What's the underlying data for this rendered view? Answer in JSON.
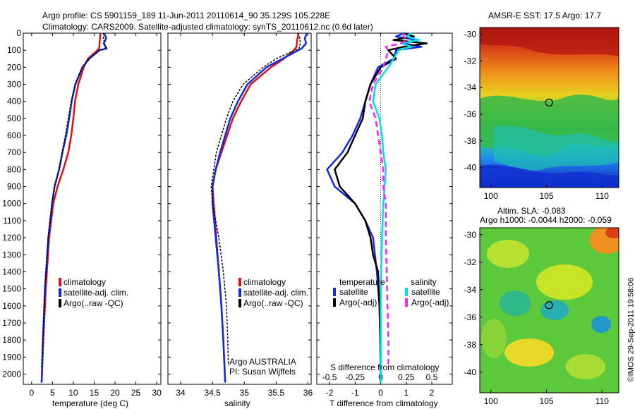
{
  "header": {
    "line1": "Argo profile: CS 5901159_189 11-Jun-2011 20110614_90 35.129S 105.228E",
    "line2": "Climatology: CARS2009. Satellite-adjusted climatology: synTS_20110612.nc (0.6d later)"
  },
  "colors": {
    "clim": "#e01010",
    "sat": "#1028e0",
    "argo": "#000000",
    "satS": "#00e0e8",
    "argoS": "#ff20ff"
  },
  "chart_data": [
    {
      "type": "line",
      "xlabel": "temperature (deg C)",
      "xlim": [
        -2,
        31
      ],
      "xticks": [
        0,
        5,
        10,
        15,
        20,
        25,
        30
      ],
      "ylim": [
        0,
        2060
      ],
      "yticks": [
        0,
        100,
        200,
        300,
        400,
        500,
        600,
        700,
        800,
        900,
        1000,
        1100,
        1200,
        1300,
        1400,
        1500,
        1600,
        1700,
        1800,
        1900,
        2000
      ],
      "legend": [
        "climatology",
        "satellite-adj. clim.",
        "Argo(..raw -QC)"
      ],
      "series": [
        {
          "name": "climatology",
          "color": "#e01010",
          "width": 2.5,
          "y": [
            0,
            30,
            60,
            90,
            100,
            150,
            200,
            300,
            400,
            500,
            600,
            700,
            800,
            900,
            1000,
            1200,
            1500,
            1800,
            2050
          ],
          "x": [
            16.5,
            16.4,
            16.3,
            16.2,
            15.8,
            13.5,
            12.5,
            11.2,
            10.4,
            10.0,
            9.5,
            8.8,
            7.6,
            6.2,
            5.2,
            4.2,
            3.4,
            2.8,
            2.4
          ]
        },
        {
          "name": "satellite-adj. clim.",
          "color": "#1028e0",
          "width": 2.5,
          "y": [
            0,
            30,
            60,
            90,
            100,
            150,
            200,
            300,
            400,
            500,
            600,
            700,
            800,
            900,
            1000,
            1200,
            1500,
            1800,
            2050
          ],
          "x": [
            17.4,
            17.9,
            17.3,
            18.0,
            16.3,
            13.8,
            12.2,
            10.5,
            9.6,
            9.0,
            8.3,
            7.4,
            6.6,
            5.5,
            4.9,
            4.0,
            3.2,
            2.7,
            2.4
          ]
        },
        {
          "name": "Argo(..raw -QC)",
          "color": "#000000",
          "width": 1.5,
          "dash": "3 2",
          "y": [
            0,
            30,
            60,
            90,
            100,
            150,
            200,
            300,
            400,
            500,
            600,
            700,
            800,
            900,
            1000,
            1200,
            1500,
            1800,
            1960
          ],
          "x": [
            17.3,
            17.2,
            17.5,
            17.7,
            16.2,
            13.8,
            12.1,
            10.4,
            9.5,
            8.8,
            8.1,
            7.3,
            6.5,
            5.5,
            4.9,
            4.0,
            3.2,
            2.7,
            2.4
          ]
        }
      ]
    },
    {
      "type": "line",
      "xlabel": "salinity",
      "xlim": [
        33.8,
        36.05
      ],
      "xticks": [
        34,
        34.5,
        35,
        35.5,
        36
      ],
      "ylim": [
        0,
        2060
      ],
      "legend": [
        "climatology",
        "satellite-adj. clim.",
        "Argo(..raw -QC)"
      ],
      "annotation": [
        "Argo AUSTRALIA",
        "PI: Susan Wijffels"
      ],
      "series": [
        {
          "name": "climatology",
          "color": "#e01010",
          "width": 2.5,
          "y": [
            0,
            40,
            80,
            100,
            150,
            200,
            300,
            400,
            500,
            600,
            700,
            800,
            900,
            1000,
            1200,
            1400,
            1600,
            1800,
            2050
          ],
          "x": [
            35.85,
            35.83,
            35.82,
            35.78,
            35.62,
            35.42,
            35.1,
            34.95,
            34.82,
            34.73,
            34.64,
            34.55,
            34.5,
            34.52,
            34.56,
            34.6,
            34.64,
            34.67,
            34.7
          ]
        },
        {
          "name": "satellite-adj. clim.",
          "color": "#1028e0",
          "width": 2.5,
          "y": [
            0,
            30,
            60,
            90,
            100,
            150,
            200,
            300,
            400,
            500,
            600,
            700,
            800,
            900,
            1000,
            1200,
            1400,
            1600,
            1800,
            2050
          ],
          "x": [
            35.98,
            35.95,
            35.97,
            35.9,
            35.85,
            35.6,
            35.35,
            35.05,
            34.9,
            34.78,
            34.7,
            34.62,
            34.55,
            34.5,
            34.5,
            34.55,
            34.6,
            34.64,
            34.67,
            34.7
          ]
        },
        {
          "name": "Argo(..raw -QC)",
          "color": "#000000",
          "width": 1.5,
          "dash": "3 2",
          "y": [
            0,
            30,
            60,
            90,
            100,
            150,
            200,
            300,
            400,
            500,
            600,
            700,
            800,
            900,
            1000,
            1200,
            1400,
            1600,
            1800,
            1950
          ],
          "x": [
            35.85,
            35.87,
            35.88,
            35.86,
            35.8,
            35.5,
            35.3,
            34.98,
            34.82,
            34.72,
            34.64,
            34.56,
            34.52,
            34.48,
            34.5,
            34.6,
            34.67,
            34.72,
            34.74,
            34.75
          ]
        }
      ]
    },
    {
      "type": "line",
      "xlabel": "T difference from climatology",
      "xlabel_top": "S difference from climatology",
      "xlim": [
        -2.5,
        2.8
      ],
      "xticks": [
        -2,
        -1,
        0,
        1,
        2
      ],
      "xticks_top": [
        "-0.5",
        "-0.25",
        "0",
        "0.25",
        "0.5"
      ],
      "xticks_top_pos": [
        -2,
        -1,
        0,
        1,
        2
      ],
      "ylim": [
        0,
        2060
      ],
      "legend_titles": [
        "temperature",
        "salinity"
      ],
      "legend": [
        "satellite",
        "Argo(-adj)",
        "satellite",
        "Argo(-adj)"
      ],
      "series": [
        {
          "name": "satellite",
          "group": "temperature",
          "color": "#1028e0",
          "width": 2.5,
          "y": [
            0,
            20,
            40,
            60,
            80,
            100,
            150,
            200,
            300,
            400,
            500,
            600,
            700,
            800,
            900,
            1000,
            1100,
            1200,
            1400,
            1600,
            1800,
            2050
          ],
          "x": [
            0.9,
            0.6,
            1.4,
            0.9,
            1.6,
            0.6,
            0.5,
            -0.1,
            -0.4,
            -0.6,
            -0.8,
            -1.1,
            -1.5,
            -2.1,
            -1.8,
            -1.0,
            -0.6,
            -0.3,
            -0.15,
            -0.05,
            -0.02,
            0.0
          ]
        },
        {
          "name": "Argo(-adj)",
          "group": "temperature",
          "color": "#000000",
          "width": 2.5,
          "y": [
            0,
            20,
            40,
            60,
            80,
            100,
            150,
            200,
            300,
            400,
            500,
            600,
            700,
            800,
            900,
            1000,
            1100,
            1200,
            1300,
            1400,
            1600,
            1900
          ],
          "x": [
            0.9,
            1.3,
            0.5,
            1.8,
            0.9,
            0.3,
            0.6,
            0.0,
            -0.4,
            -0.6,
            -0.7,
            -1.0,
            -1.3,
            -1.8,
            -1.6,
            -1.0,
            -0.6,
            -0.4,
            -0.3,
            -0.1,
            -0.05,
            0.0
          ]
        },
        {
          "name": "satellite",
          "group": "salinity",
          "color": "#00e0e8",
          "width": 2.5,
          "y": [
            0,
            20,
            40,
            60,
            80,
            100,
            150,
            200,
            300,
            400,
            500,
            600,
            700,
            800,
            900,
            1000,
            1200,
            1500,
            1800,
            2050
          ],
          "x": [
            1.2,
            1.0,
            1.5,
            0.8,
            1.2,
            0.7,
            0.5,
            0.3,
            -0.2,
            -0.3,
            -0.05,
            0.05,
            0.1,
            0.2,
            0.15,
            0.1,
            0.05,
            0.0,
            0.0,
            0.0
          ]
        },
        {
          "name": "Argo(-adj)",
          "group": "salinity",
          "color": "#ff20ff",
          "width": 2.5,
          "dash": "8 5",
          "y": [
            0,
            20,
            40,
            60,
            80,
            100,
            150,
            200,
            300,
            400,
            500,
            600,
            700,
            800,
            900,
            1000,
            1200,
            1500,
            1800,
            1950
          ],
          "x": [
            0.9,
            0.9,
            1.0,
            0.8,
            0.2,
            0.3,
            0.2,
            0.1,
            -0.3,
            -0.45,
            -0.2,
            -0.1,
            0.0,
            0.1,
            0.1,
            0.2,
            0.2,
            0.25,
            0.3,
            0.3
          ]
        }
      ]
    },
    {
      "type": "heatmap",
      "title": "AMSR-E SST: 17.5 Argo: 17.7",
      "xlim": [
        99,
        111.5
      ],
      "ylim": [
        -41.5,
        -29.5
      ],
      "xticks": [
        100,
        105,
        110
      ],
      "yticks": [
        -30,
        -32,
        -34,
        -36,
        -38,
        -40
      ],
      "marker": {
        "lon": 105.228,
        "lat": -35.129
      }
    },
    {
      "type": "heatmap",
      "title_line1": "Altim. SLA: -0.083",
      "title_line2": "Argo h1000: -0.0044 h2000: -0.059",
      "xlim": [
        99,
        111.5
      ],
      "ylim": [
        -41.5,
        -29.5
      ],
      "xticks": [
        100,
        105,
        110
      ],
      "yticks": [
        -30,
        -32,
        -34,
        -36,
        -38,
        -40
      ],
      "marker": {
        "lon": 105.228,
        "lat": -35.129
      },
      "credit": "©IMOS 29-Sep-2011 19:58:06"
    }
  ]
}
